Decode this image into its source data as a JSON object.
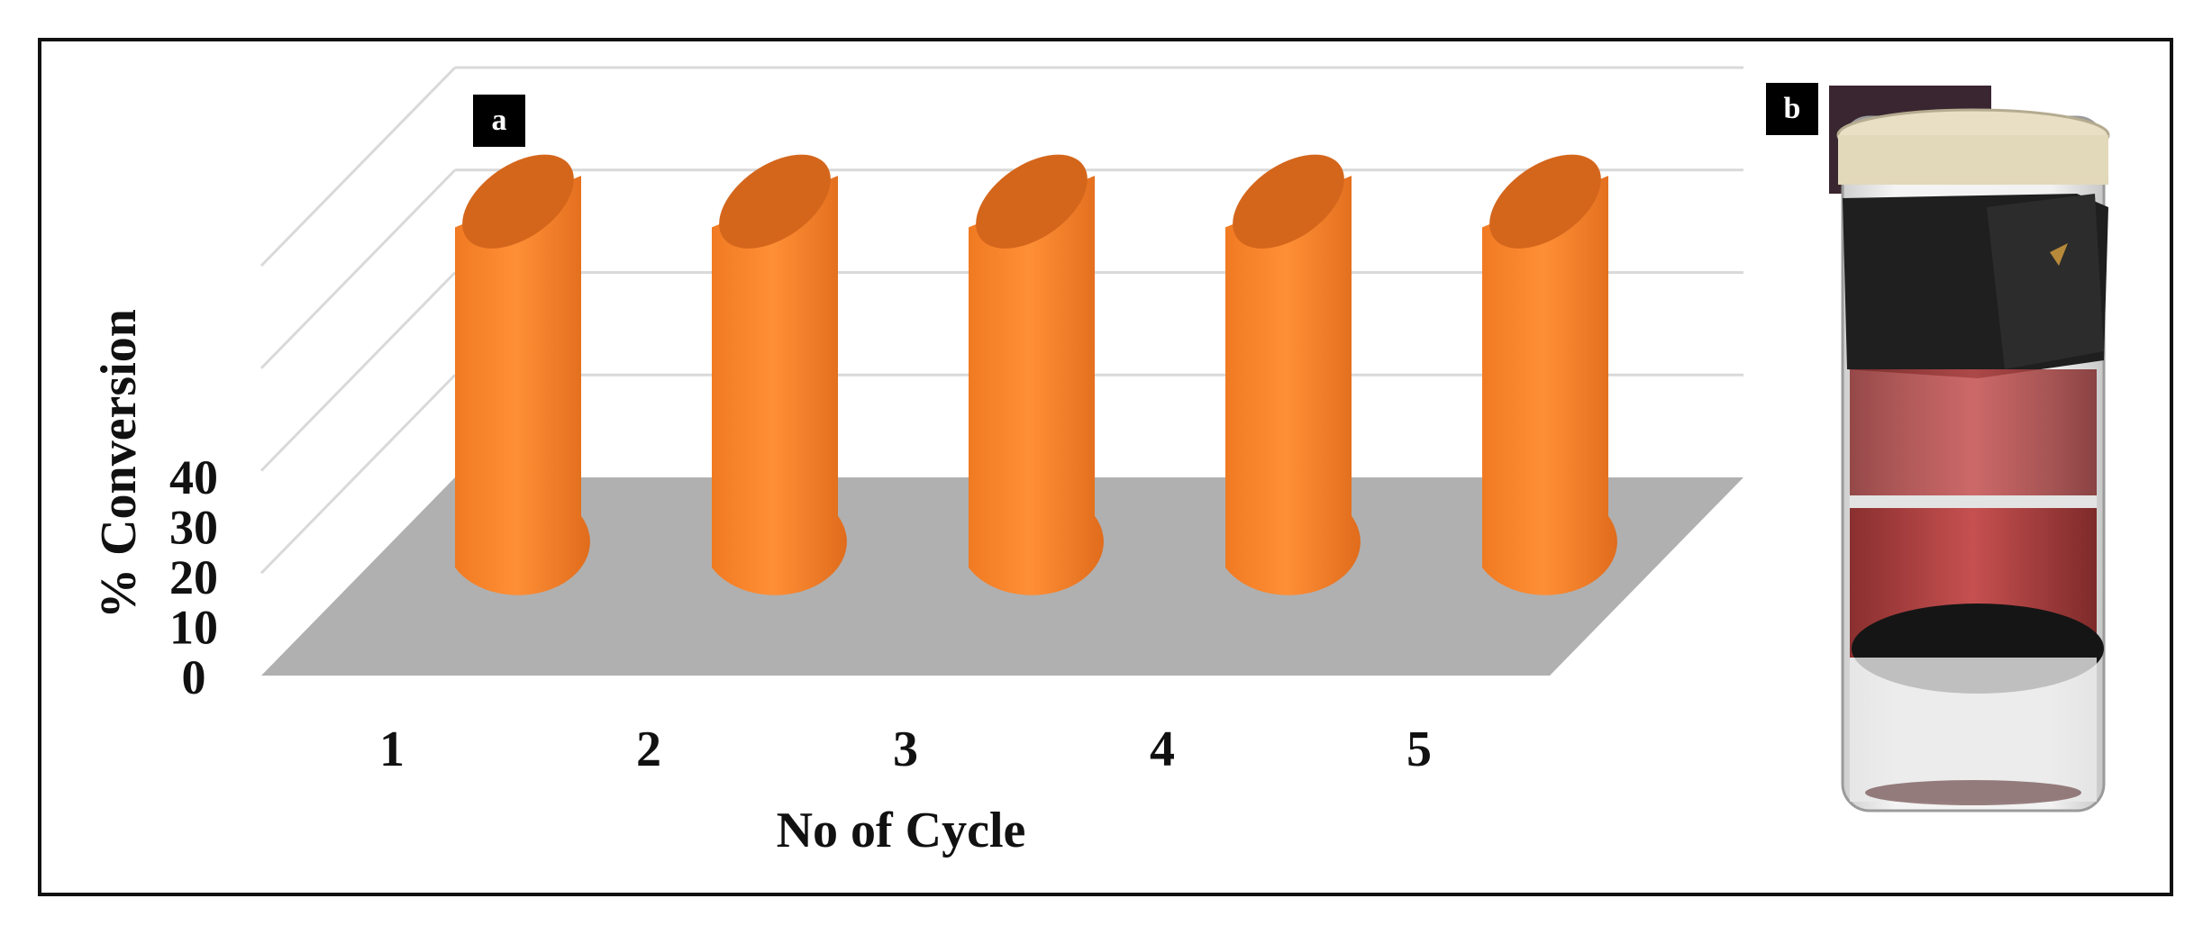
{
  "chart_data": {
    "type": "bar",
    "style": "3d-cylinder",
    "categories": [
      "1",
      "2",
      "3",
      "4",
      "5"
    ],
    "values": [
      40,
      40,
      40,
      40,
      40
    ],
    "xlabel": "No of Cycle",
    "ylabel": "% Conversion",
    "ylim": [
      0,
      40
    ],
    "yticks": [
      "0",
      "10",
      "20",
      "30",
      "40"
    ],
    "grid": true,
    "legend": "none",
    "colors": {
      "bar_front": "#f5842a",
      "bar_top": "#d4661c",
      "floor": "#b0b0b0",
      "grid": "#d9d9d9"
    }
  },
  "panels": {
    "a": "a",
    "b": "b"
  },
  "photo": {
    "icon": "vial-with-magnet-photo"
  }
}
